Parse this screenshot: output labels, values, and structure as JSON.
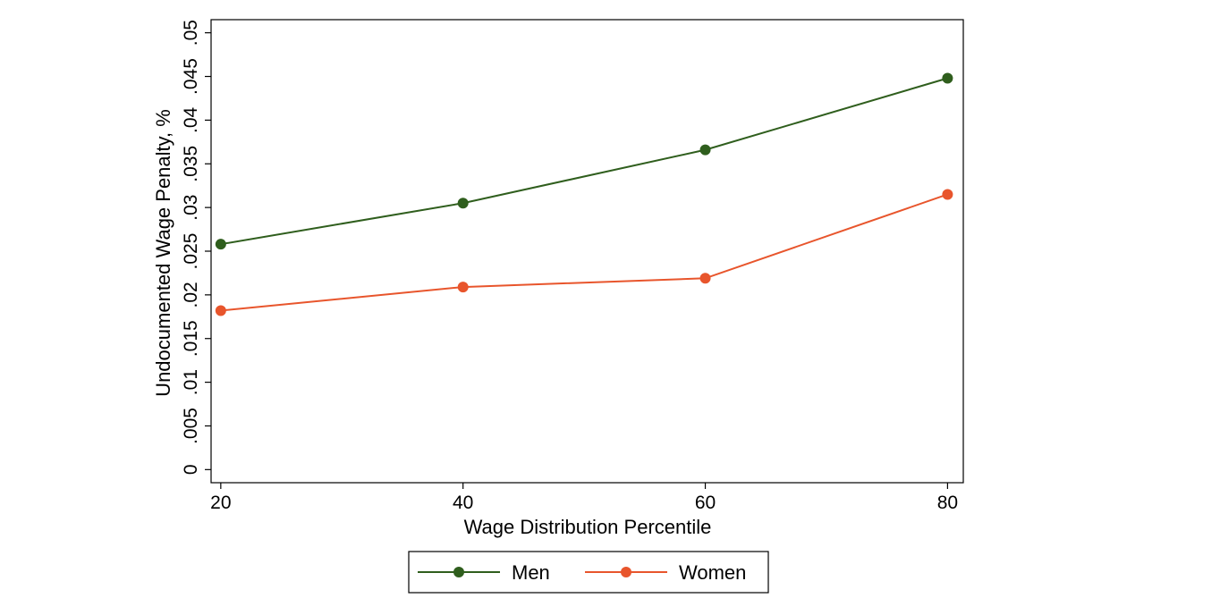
{
  "chart_data": {
    "type": "line",
    "title": "",
    "xlabel": "Wage Distribution Percentile",
    "ylabel": "Undocumented Wage Penalty, %",
    "x": [
      20,
      40,
      60,
      80
    ],
    "xticks": [
      "20",
      "40",
      "60",
      "80"
    ],
    "yticks": [
      "0",
      ".005",
      ".01",
      ".015",
      ".02",
      ".025",
      ".03",
      ".035",
      ".04",
      ".045",
      ".05"
    ],
    "xlim": [
      19.2,
      81.3
    ],
    "ylim": [
      -0.0015,
      0.0515
    ],
    "grid": false,
    "legend_position": "bottom-center",
    "series": [
      {
        "name": "Men",
        "color": "#2f5e1d",
        "values": [
          0.0258,
          0.0305,
          0.0366,
          0.0448
        ]
      },
      {
        "name": "Women",
        "color": "#e8552c",
        "values": [
          0.0182,
          0.0209,
          0.0219,
          0.0315
        ]
      }
    ]
  }
}
